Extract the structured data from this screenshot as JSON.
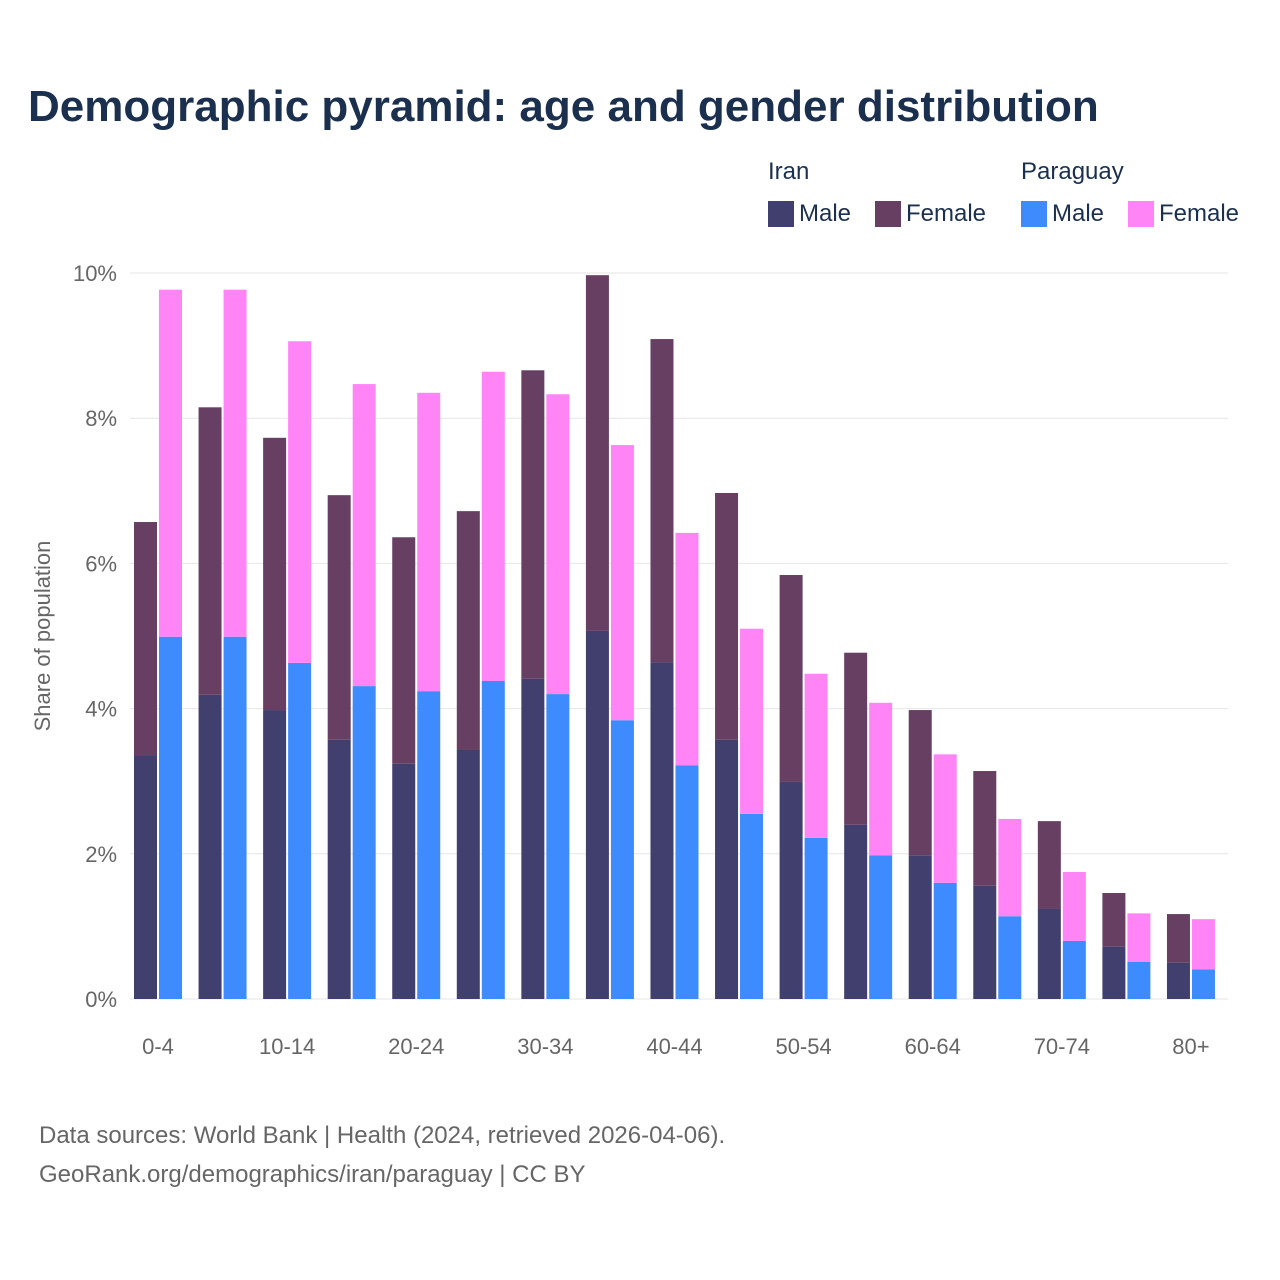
{
  "chart_data": {
    "type": "bar",
    "stacked": true,
    "title": "Demographic pyramid: age and gender distribution",
    "ylabel": "Share of population",
    "xlabel": "",
    "ylim": [
      0,
      10
    ],
    "yticks": [
      "0%",
      "2%",
      "4%",
      "6%",
      "8%",
      "10%"
    ],
    "ytick_values": [
      0,
      2,
      4,
      6,
      8,
      10
    ],
    "grid": true,
    "legend_placement": "top-right",
    "categories": [
      "0-4",
      "5-9",
      "10-14",
      "15-19",
      "20-24",
      "25-29",
      "30-34",
      "35-39",
      "40-44",
      "45-49",
      "50-54",
      "55-59",
      "60-64",
      "65-69",
      "70-74",
      "75-79",
      "80+"
    ],
    "shown_xticks": [
      "0-4",
      "10-14",
      "20-24",
      "30-34",
      "40-44",
      "50-54",
      "60-64",
      "70-74",
      "80+"
    ],
    "countries": [
      {
        "name": "Iran",
        "series": [
          {
            "name": "Male",
            "color": "#413f6e",
            "values": [
              3.36,
              4.19,
              3.98,
              3.57,
              3.24,
              3.43,
              4.41,
              5.07,
              4.64,
              3.57,
              2.99,
              2.4,
              1.98,
              1.56,
              1.24,
              0.72,
              0.5
            ]
          },
          {
            "name": "Female",
            "color": "#663f62",
            "values": [
              3.21,
              3.96,
              3.75,
              3.37,
              3.12,
              3.29,
              4.25,
              4.9,
              4.45,
              3.4,
              2.85,
              2.37,
              2.0,
              1.58,
              1.21,
              0.74,
              0.67
            ]
          }
        ]
      },
      {
        "name": "Paraguay",
        "series": [
          {
            "name": "Male",
            "color": "#3d8bfd",
            "values": [
              4.99,
              4.99,
              4.63,
              4.31,
              4.24,
              4.38,
              4.2,
              3.84,
              3.22,
              2.55,
              2.22,
              1.98,
              1.6,
              1.14,
              0.8,
              0.51,
              0.41
            ]
          },
          {
            "name": "Female",
            "color": "#ff85f7",
            "values": [
              4.78,
              4.78,
              4.43,
              4.16,
              4.11,
              4.26,
              4.13,
              3.79,
              3.2,
              2.55,
              2.26,
              2.1,
              1.77,
              1.34,
              0.95,
              0.67,
              0.69
            ]
          }
        ]
      }
    ]
  },
  "footer": {
    "line1": "Data sources: World Bank | Health (2024, retrieved 2026-04-06).",
    "line2": "GeoRank.org/demographics/iran/paraguay | CC BY"
  }
}
